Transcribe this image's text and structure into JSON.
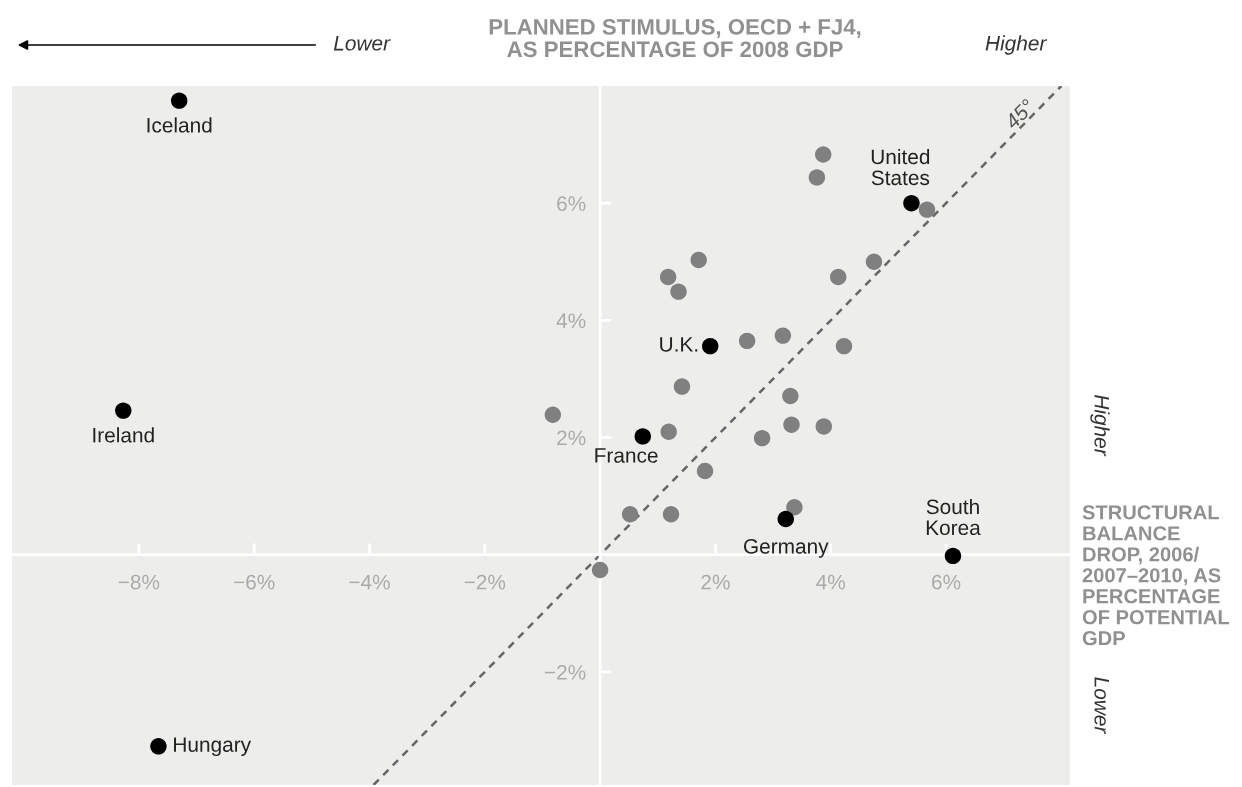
{
  "chart_data": {
    "type": "scatter",
    "xlabel": "PLANNED STIMULUS, OECD + FJ4,\nAS PERCENTAGE OF 2008 GDP",
    "ylabel": "STRUCTURAL\nBALANCE\nDROP, 2006/\n2007–2010, AS\nPERCENTAGE\nOF POTENTIAL\nGDP",
    "xlim": [
      -10.2,
      8.15
    ],
    "ylim": [
      -3.93,
      8.0
    ],
    "xticks": [
      {
        "value": -8,
        "label": "−8%"
      },
      {
        "value": -6,
        "label": "−6%"
      },
      {
        "value": -4,
        "label": "−4%"
      },
      {
        "value": -2,
        "label": "−2%"
      },
      {
        "value": 2,
        "label": "2%"
      },
      {
        "value": 4,
        "label": "4%"
      },
      {
        "value": 6,
        "label": "6%"
      }
    ],
    "yticks": [
      {
        "value": -2,
        "label": "−2%"
      },
      {
        "value": 2,
        "label": "2%"
      },
      {
        "value": 4,
        "label": "4%"
      },
      {
        "value": 6,
        "label": "6%"
      }
    ],
    "grid": false,
    "legend": false,
    "marker": "circle",
    "series": [
      {
        "color": "#808080",
        "x": [
          3.87,
          3.76,
          5.67,
          1.71,
          1.18,
          1.36,
          4.13,
          4.75,
          2.55,
          3.17,
          4.23,
          1.42,
          -0.82,
          3.3,
          1.19,
          3.32,
          3.88,
          2.81,
          1.82,
          0.52,
          1.23,
          3.37,
          0.0
        ],
        "values": [
          6.83,
          6.44,
          5.89,
          5.03,
          4.74,
          4.49,
          4.74,
          5.0,
          3.65,
          3.74,
          3.56,
          2.87,
          2.39,
          2.71,
          2.1,
          2.22,
          2.19,
          1.99,
          1.43,
          0.69,
          0.69,
          0.81,
          -0.26
        ]
      },
      {
        "color": "#000000",
        "x": [
          -7.3,
          -8.27,
          -7.66,
          5.4,
          1.91,
          0.74,
          3.22,
          6.12
        ],
        "values": [
          7.75,
          2.46,
          -3.27,
          6.0,
          3.56,
          2.02,
          0.61,
          -0.02
        ]
      },
      {
        "type": "line",
        "color": "#666666",
        "line_style": "dashed",
        "marker": "none",
        "x": [
          -3.93,
          8.0
        ],
        "values": [
          -3.93,
          8.0
        ]
      }
    ],
    "annotations": [
      "Lower",
      "Higher",
      "Higher",
      "Lower",
      "45°",
      {
        "text": "Iceland",
        "x": -7.3,
        "y": 7.75
      },
      {
        "text": "Ireland",
        "x": -8.27,
        "y": 2.46
      },
      {
        "text": "Hungary",
        "x": -7.66,
        "y": -3.27
      },
      {
        "text": "United\nStates",
        "x": 5.4,
        "y": 6.0
      },
      {
        "text": "U.K.",
        "x": 1.91,
        "y": 3.56
      },
      {
        "text": "France",
        "x": 0.74,
        "y": 2.02
      },
      {
        "text": "Germany",
        "x": 3.22,
        "y": 0.61
      },
      {
        "text": "South\nKorea",
        "x": 6.12,
        "y": -0.02
      }
    ]
  }
}
